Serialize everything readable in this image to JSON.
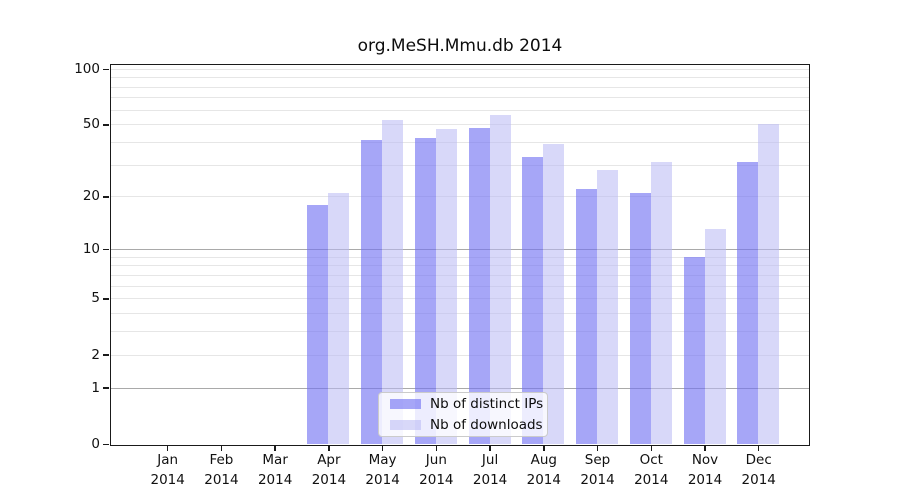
{
  "chart_data": {
    "type": "bar",
    "title": "org.MeSH.Mmu.db 2014",
    "year": "2014",
    "categories": [
      "Jan",
      "Feb",
      "Mar",
      "Apr",
      "May",
      "Jun",
      "Jul",
      "Aug",
      "Sep",
      "Oct",
      "Nov",
      "Dec"
    ],
    "series": [
      {
        "name": "Nb of distinct IPs",
        "color": "rgba(114,114,243,0.63)",
        "solid_color": "#a6a6f8",
        "values": [
          0,
          0,
          0,
          18,
          41,
          42,
          48,
          33,
          22,
          21,
          9,
          31
        ]
      },
      {
        "name": "Nb of downloads",
        "color": "rgba(185,185,245,0.56)",
        "solid_color": "#d8d8f9",
        "values": [
          0,
          0,
          0,
          21,
          53,
          47,
          56,
          39,
          28,
          31,
          13,
          50
        ]
      }
    ],
    "xlabel": "",
    "ylabel": "",
    "yscale": "log1p",
    "yticks": [
      100,
      50,
      20,
      10,
      5,
      2,
      1,
      0
    ],
    "minor_gridlines": [
      90,
      80,
      70,
      60,
      40,
      30,
      9,
      8,
      7,
      6,
      4,
      3
    ],
    "decade_gridlines": [
      10,
      1
    ],
    "ylim": [
      0,
      107
    ],
    "grid": "horizontal",
    "legend_position": "lower center"
  }
}
